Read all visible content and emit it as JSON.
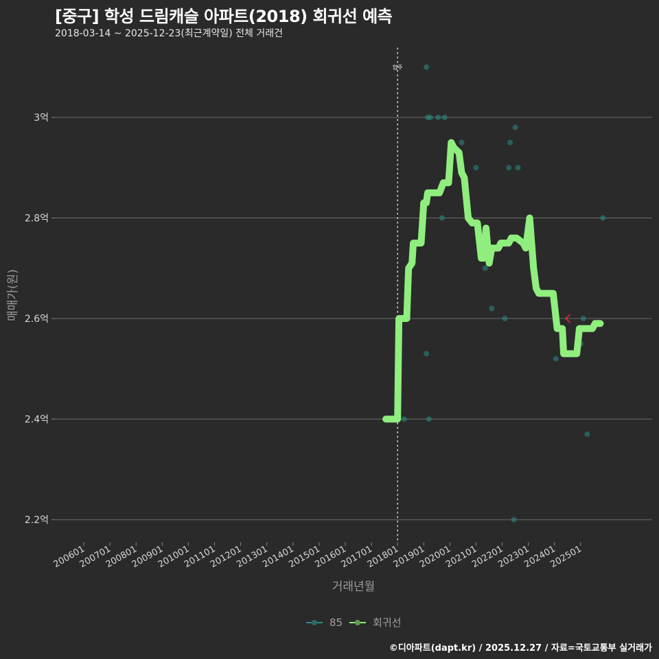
{
  "header": {
    "title": "[중구] 학성 드림캐슬 아파트(2018) 회귀선 예측",
    "subtitle": "2018-03-14 ~ 2025-12-23(최근계약일) 전체 거래건"
  },
  "footer": {
    "credit": "©디아파트(dapt.kr) / 2025.12.27 / 자료=국토교통부 실거래가"
  },
  "legend": {
    "items": [
      {
        "label": "85",
        "color": "#2a8c84"
      },
      {
        "label": "회귀선",
        "color": "#90ee7e"
      }
    ]
  },
  "annotation": {
    "label": "입주",
    "x": "201801"
  },
  "chart_data": {
    "type": "line",
    "title": "[중구] 학성 드림캐슬 아파트(2018) 회귀선 예측",
    "subtitle": "2018-03-14 ~ 2025-12-23(최근계약일) 전체 거래건",
    "xlabel": "거래년월",
    "ylabel": "매매가(원)",
    "x_ticks": [
      "200601",
      "200701",
      "200801",
      "200901",
      "201001",
      "201101",
      "201201",
      "201301",
      "201401",
      "201501",
      "201601",
      "201701",
      "201801",
      "201901",
      "202001",
      "202101",
      "202201",
      "202301",
      "202401",
      "202501"
    ],
    "y_ticks": [
      "2.2억",
      "2.4억",
      "2.6억",
      "2.8억",
      "3억"
    ],
    "y_tick_values": [
      2.2,
      2.4,
      2.6,
      2.8,
      3.0
    ],
    "ylim": [
      2.14,
      3.14
    ],
    "grid": true,
    "legend_position": "bottom",
    "vline": {
      "x": 2018.0,
      "label": "입주",
      "style": "dotted"
    },
    "series": [
      {
        "name": "회귀선",
        "type": "line",
        "color": "#90ee7e",
        "points": [
          [
            2017.55,
            2.4
          ],
          [
            2018.0,
            2.4
          ],
          [
            2018.05,
            2.6
          ],
          [
            2018.35,
            2.6
          ],
          [
            2018.42,
            2.7
          ],
          [
            2018.55,
            2.71
          ],
          [
            2018.6,
            2.75
          ],
          [
            2018.9,
            2.75
          ],
          [
            2019.0,
            2.83
          ],
          [
            2019.1,
            2.83
          ],
          [
            2019.15,
            2.85
          ],
          [
            2019.6,
            2.85
          ],
          [
            2019.75,
            2.87
          ],
          [
            2019.95,
            2.87
          ],
          [
            2020.05,
            2.95
          ],
          [
            2020.15,
            2.94
          ],
          [
            2020.35,
            2.93
          ],
          [
            2020.45,
            2.89
          ],
          [
            2020.55,
            2.88
          ],
          [
            2020.7,
            2.8
          ],
          [
            2020.85,
            2.79
          ],
          [
            2021.05,
            2.79
          ],
          [
            2021.2,
            2.72
          ],
          [
            2021.3,
            2.72
          ],
          [
            2021.38,
            2.78
          ],
          [
            2021.5,
            2.71
          ],
          [
            2021.6,
            2.74
          ],
          [
            2021.85,
            2.74
          ],
          [
            2021.95,
            2.75
          ],
          [
            2022.25,
            2.75
          ],
          [
            2022.35,
            2.76
          ],
          [
            2022.55,
            2.76
          ],
          [
            2022.8,
            2.75
          ],
          [
            2022.9,
            2.74
          ],
          [
            2023.05,
            2.8
          ],
          [
            2023.2,
            2.7
          ],
          [
            2023.3,
            2.66
          ],
          [
            2023.4,
            2.65
          ],
          [
            2023.95,
            2.65
          ],
          [
            2024.1,
            2.58
          ],
          [
            2024.3,
            2.58
          ],
          [
            2024.35,
            2.53
          ],
          [
            2024.85,
            2.53
          ],
          [
            2024.95,
            2.58
          ],
          [
            2025.45,
            2.58
          ],
          [
            2025.55,
            2.59
          ],
          [
            2025.75,
            2.59
          ]
        ]
      },
      {
        "name": "85",
        "type": "scatter",
        "color": "#2a8c84",
        "points": [
          [
            2018.25,
            2.4
          ],
          [
            2019.1,
            3.1
          ],
          [
            2019.15,
            3.0
          ],
          [
            2019.25,
            3.0
          ],
          [
            2019.55,
            3.0
          ],
          [
            2019.8,
            3.0
          ],
          [
            2019.1,
            2.53
          ],
          [
            2019.2,
            2.4
          ],
          [
            2019.7,
            2.8
          ],
          [
            2020.45,
            2.95
          ],
          [
            2021.0,
            2.9
          ],
          [
            2021.35,
            2.7
          ],
          [
            2021.6,
            2.62
          ],
          [
            2022.1,
            2.6
          ],
          [
            2022.25,
            2.9
          ],
          [
            2022.3,
            2.95
          ],
          [
            2022.45,
            2.2
          ],
          [
            2022.5,
            2.98
          ],
          [
            2022.6,
            2.9
          ],
          [
            2024.05,
            2.52
          ],
          [
            2025.0,
            2.55
          ],
          [
            2025.1,
            2.6
          ],
          [
            2025.25,
            2.37
          ],
          [
            2025.85,
            2.8
          ]
        ]
      }
    ],
    "marker": {
      "x": 2024.5,
      "y": 2.6,
      "color": "#e03030",
      "shape": "<"
    }
  }
}
